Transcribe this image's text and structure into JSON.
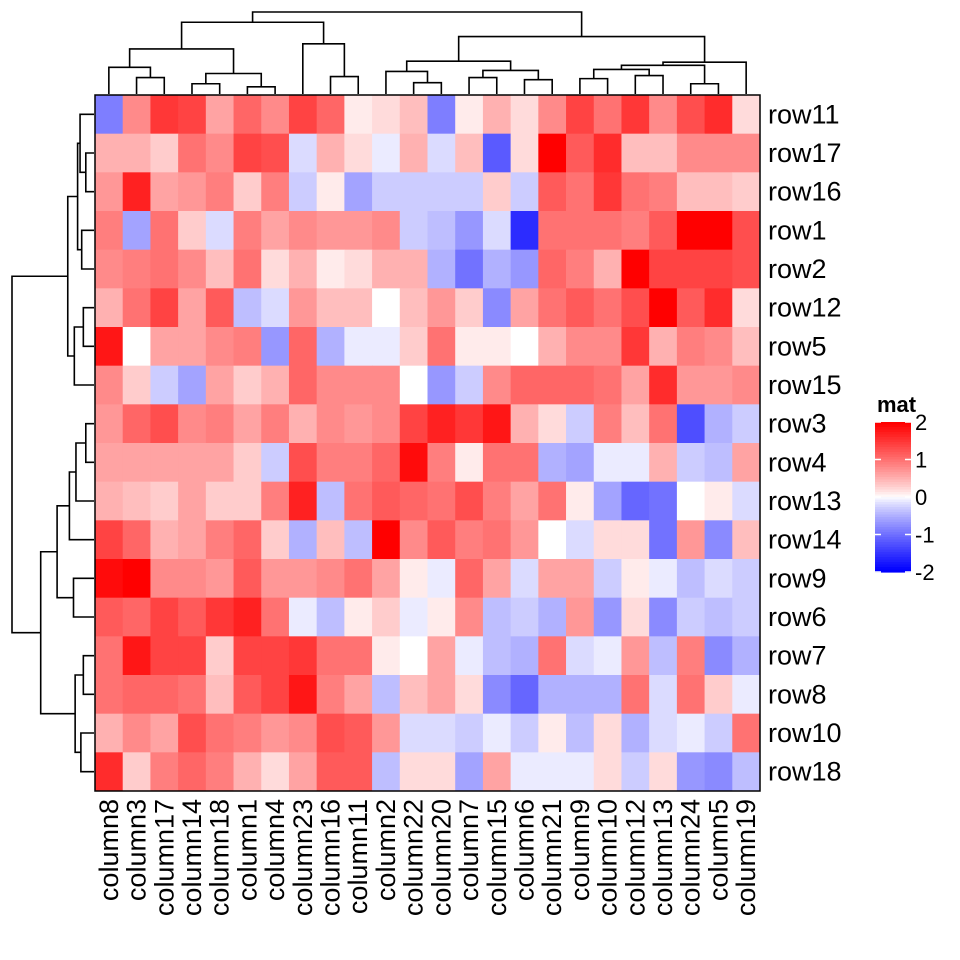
{
  "chart_data": {
    "type": "heatmap",
    "title": "",
    "rows": [
      "row11",
      "row17",
      "row16",
      "row1",
      "row2",
      "row12",
      "row5",
      "row15",
      "row3",
      "row4",
      "row13",
      "row14",
      "row9",
      "row6",
      "row7",
      "row8",
      "row10",
      "row18"
    ],
    "columns": [
      "column8",
      "column3",
      "column17",
      "column14",
      "column18",
      "column1",
      "column4",
      "column23",
      "column16",
      "column11",
      "column2",
      "column22",
      "column20",
      "column7",
      "column15",
      "column6",
      "column21",
      "column9",
      "column10",
      "column12",
      "column13",
      "column24",
      "column5",
      "column19"
    ],
    "values": [
      [
        -0.9,
        0.8,
        1.5,
        1.4,
        0.6,
        1.1,
        0.8,
        1.4,
        1.1,
        0.1,
        0.2,
        0.4,
        -0.9,
        0.1,
        0.5,
        0.2,
        0.8,
        1.4,
        1.0,
        1.5,
        0.8,
        1.3,
        1.6,
        0.2
      ],
      [
        0.5,
        0.5,
        0.3,
        1.0,
        0.8,
        1.4,
        1.3,
        -0.2,
        0.5,
        0.2,
        -0.1,
        0.5,
        -0.2,
        0.4,
        -1.2,
        0.2,
        2.0,
        1.2,
        1.6,
        0.4,
        0.4,
        0.8,
        0.8,
        0.8
      ],
      [
        0.7,
        1.7,
        0.6,
        0.7,
        0.9,
        0.3,
        0.9,
        -0.3,
        0.1,
        -0.6,
        -0.3,
        -0.3,
        -0.3,
        -0.3,
        0.3,
        -0.3,
        1.2,
        1.0,
        1.5,
        1.0,
        0.9,
        0.4,
        0.4,
        0.3
      ],
      [
        0.9,
        -0.6,
        1.0,
        0.3,
        -0.2,
        0.9,
        0.6,
        0.8,
        0.7,
        0.7,
        0.8,
        -0.3,
        -0.4,
        -0.7,
        -0.2,
        -1.6,
        1.0,
        1.0,
        1.0,
        0.9,
        1.2,
        2.0,
        2.0,
        1.3
      ],
      [
        0.8,
        0.9,
        1.0,
        0.8,
        0.4,
        1.0,
        0.2,
        0.5,
        0.1,
        0.2,
        0.5,
        0.5,
        -0.5,
        -1.0,
        -0.5,
        -0.7,
        1.1,
        0.9,
        0.5,
        2.0,
        1.4,
        1.4,
        1.4,
        1.3
      ],
      [
        0.5,
        1.0,
        1.4,
        0.6,
        1.2,
        -0.4,
        -0.2,
        0.7,
        0.4,
        0.4,
        0.0,
        0.4,
        0.7,
        0.3,
        -0.8,
        0.6,
        1.0,
        1.2,
        1.0,
        1.3,
        2.0,
        1.2,
        1.6,
        0.2
      ],
      [
        1.8,
        0.0,
        0.6,
        0.6,
        0.8,
        0.9,
        -0.7,
        1.1,
        -0.5,
        -0.1,
        -0.1,
        0.3,
        1.0,
        0.1,
        0.1,
        0.0,
        0.5,
        0.8,
        0.8,
        1.5,
        0.5,
        0.9,
        0.8,
        0.4
      ],
      [
        0.8,
        0.3,
        -0.3,
        -0.6,
        0.6,
        0.3,
        0.5,
        1.1,
        0.8,
        0.8,
        0.8,
        0.0,
        -0.7,
        -0.3,
        0.8,
        1.1,
        1.1,
        1.1,
        1.0,
        0.6,
        1.6,
        0.7,
        0.7,
        0.8
      ],
      [
        0.7,
        1.1,
        1.3,
        0.8,
        0.9,
        0.6,
        0.9,
        0.5,
        0.8,
        0.7,
        0.8,
        1.4,
        1.7,
        1.5,
        1.8,
        0.5,
        0.2,
        -0.3,
        0.9,
        0.4,
        1.0,
        -1.3,
        -0.5,
        -0.3
      ],
      [
        0.6,
        0.6,
        0.6,
        0.6,
        0.6,
        0.3,
        -0.3,
        1.3,
        0.9,
        0.9,
        1.1,
        1.9,
        0.9,
        0.1,
        1.0,
        1.0,
        -0.5,
        -0.6,
        -0.1,
        -0.1,
        0.5,
        -0.3,
        -0.4,
        0.6
      ],
      [
        0.5,
        0.4,
        0.3,
        0.6,
        0.3,
        0.3,
        0.9,
        1.7,
        -0.4,
        1.0,
        1.2,
        1.1,
        1.0,
        1.3,
        0.9,
        0.6,
        1.0,
        0.1,
        -0.6,
        -1.1,
        -1.0,
        0.0,
        0.1,
        -0.2
      ],
      [
        1.4,
        1.1,
        0.5,
        0.6,
        0.9,
        1.1,
        0.3,
        -0.5,
        0.4,
        -0.4,
        2.0,
        0.8,
        1.2,
        0.9,
        1.0,
        0.7,
        0.0,
        -0.2,
        0.2,
        0.2,
        -1.0,
        0.7,
        -0.8,
        0.4
      ],
      [
        1.9,
        2.0,
        0.8,
        0.8,
        0.7,
        1.2,
        0.7,
        0.7,
        0.8,
        1.0,
        0.6,
        0.1,
        -0.1,
        1.1,
        0.6,
        -0.2,
        0.6,
        0.6,
        -0.3,
        0.1,
        -0.1,
        -0.4,
        -0.2,
        -0.3
      ],
      [
        1.2,
        1.1,
        1.4,
        1.2,
        1.5,
        1.7,
        1.0,
        -0.1,
        -0.4,
        0.1,
        0.3,
        -0.1,
        0.1,
        0.8,
        -0.4,
        -0.3,
        -0.5,
        0.7,
        -0.7,
        0.2,
        -0.8,
        -0.3,
        -0.4,
        -0.3
      ],
      [
        1.0,
        1.8,
        1.4,
        1.4,
        0.3,
        1.4,
        1.4,
        1.5,
        1.0,
        1.0,
        0.1,
        0.0,
        0.6,
        -0.1,
        -0.4,
        -0.5,
        1.0,
        -0.2,
        -0.1,
        0.7,
        -0.4,
        0.9,
        -0.8,
        -0.5
      ],
      [
        1.0,
        1.1,
        1.1,
        1.0,
        0.4,
        1.2,
        1.4,
        1.8,
        0.9,
        0.6,
        -0.4,
        0.4,
        0.6,
        0.2,
        -0.8,
        -1.1,
        -0.5,
        -0.5,
        -0.5,
        1.0,
        -0.2,
        1.0,
        0.3,
        -0.1
      ],
      [
        0.5,
        0.8,
        0.6,
        1.3,
        1.0,
        0.9,
        0.7,
        0.8,
        1.3,
        1.2,
        0.7,
        -0.2,
        -0.2,
        -0.3,
        -0.1,
        -0.3,
        0.1,
        -0.4,
        0.2,
        -0.5,
        -0.2,
        -0.1,
        -0.3,
        1.0
      ],
      [
        1.6,
        0.3,
        0.9,
        1.1,
        0.9,
        0.5,
        0.2,
        0.6,
        1.2,
        1.2,
        -0.4,
        0.2,
        0.2,
        -0.6,
        0.6,
        -0.1,
        -0.1,
        -0.1,
        0.2,
        -0.3,
        0.2,
        -0.7,
        -0.8,
        -0.4
      ]
    ],
    "color_scale": {
      "low": "#0000ff",
      "mid": "#ffffff",
      "high": "#ff0000",
      "domain": [
        -2,
        0,
        2
      ]
    },
    "legend": {
      "title": "mat",
      "ticks": [
        2,
        1,
        0,
        -1,
        -2
      ],
      "placement": "right"
    },
    "row_dendrogram": "left",
    "column_dendrogram": "top"
  }
}
